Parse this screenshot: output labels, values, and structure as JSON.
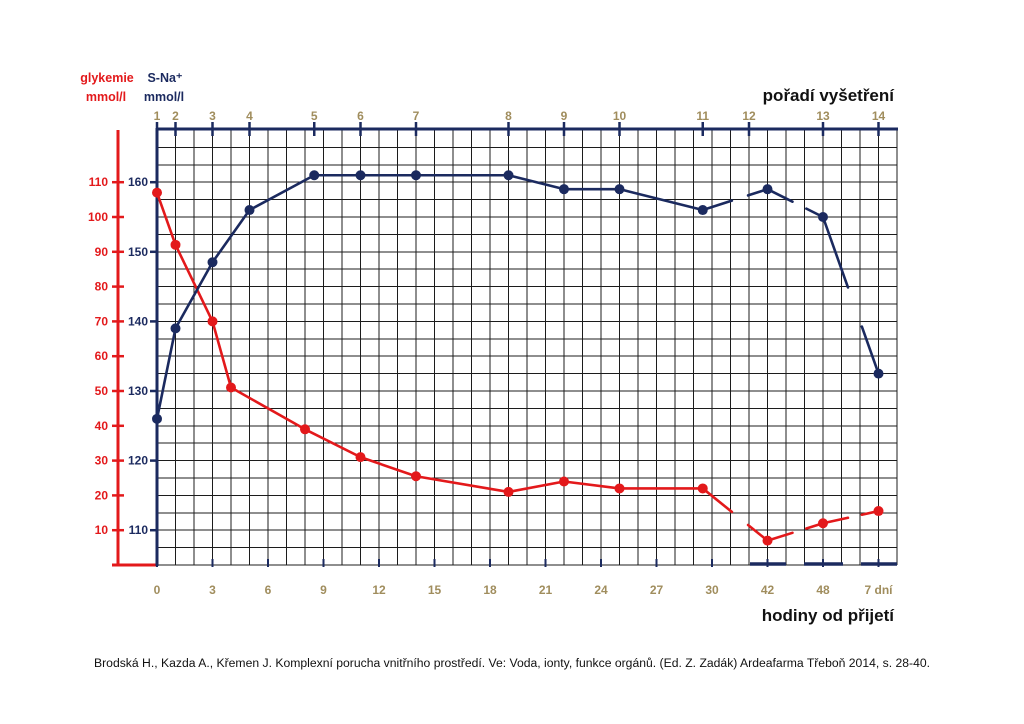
{
  "chart_data": {
    "type": "line",
    "grid": true,
    "tick_label_color": "#a08d5d",
    "x_top": {
      "label": "pořadí vyšetření",
      "ticks": [
        "1",
        "2",
        "3",
        "4",
        "5",
        "6",
        "7",
        "8",
        "9",
        "10",
        "11",
        "12",
        "13",
        "14"
      ]
    },
    "x": {
      "label": "hodiny od přijetí",
      "ticks": [
        "0",
        "3",
        "6",
        "9",
        "12",
        "15",
        "18",
        "21",
        "24",
        "27",
        "30",
        "42",
        "48",
        "7 dní"
      ]
    },
    "series": [
      {
        "name": "glykemie",
        "unit": "mmol/l",
        "color": "#e3191b",
        "ylim": [
          0,
          125
        ],
        "y_ticks": [
          10,
          20,
          30,
          40,
          50,
          60,
          70,
          80,
          90,
          100,
          110
        ],
        "x": [
          0,
          1,
          3,
          4,
          8,
          11,
          14,
          19,
          22,
          25,
          29.5,
          42,
          48,
          "7 dní"
        ],
        "y": [
          107,
          92,
          70,
          51,
          39,
          31,
          25.5,
          21,
          24,
          22,
          22,
          7,
          12,
          15.5
        ]
      },
      {
        "name": "S-Na⁺",
        "unit": "mmol/l",
        "color": "#1b2a5f",
        "ylim": [
          105,
          167.5
        ],
        "y_ticks": [
          110,
          120,
          130,
          140,
          150,
          160
        ],
        "x": [
          0,
          1,
          3,
          5,
          8.5,
          11,
          14,
          19,
          22,
          25,
          29.5,
          42,
          48,
          "7 dní"
        ],
        "y": [
          126,
          139,
          148.5,
          156,
          161,
          161,
          161,
          161,
          159,
          159,
          156,
          159,
          155,
          132.5
        ]
      }
    ]
  },
  "caption": "Brodská H., Kazda A., Křemen J. Komplexní porucha vnitřního prostředí. Ve: Voda, ionty, funkce orgánů. (Ed. Z. Zadák) Ardeafarma Třeboň 2014, s. 28-40."
}
